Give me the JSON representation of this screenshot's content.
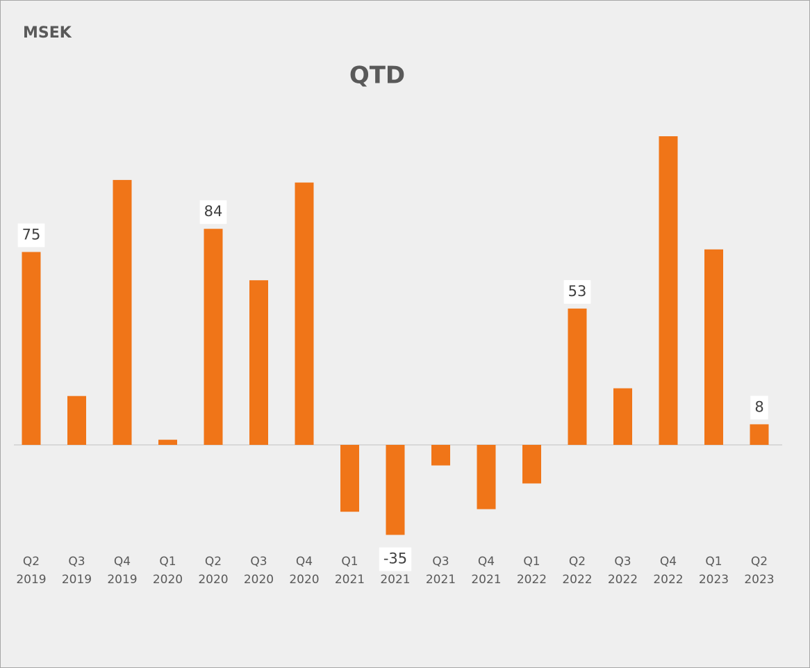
{
  "chart_data": {
    "type": "bar",
    "unit_label": "MSEK",
    "title": "QTD",
    "categories": [
      [
        "Q2",
        "2019"
      ],
      [
        "Q3",
        "2019"
      ],
      [
        "Q4",
        "2019"
      ],
      [
        "Q1",
        "2020"
      ],
      [
        "Q2",
        "2020"
      ],
      [
        "Q3",
        "2020"
      ],
      [
        "Q4",
        "2020"
      ],
      [
        "Q1",
        "2021"
      ],
      [
        "Q2",
        "2021"
      ],
      [
        "Q3",
        "2021"
      ],
      [
        "Q4",
        "2021"
      ],
      [
        "Q1",
        "2022"
      ],
      [
        "Q2",
        "2022"
      ],
      [
        "Q3",
        "2022"
      ],
      [
        "Q4",
        "2022"
      ],
      [
        "Q1",
        "2023"
      ],
      [
        "Q2",
        "2023"
      ]
    ],
    "values": [
      75,
      19,
      103,
      2,
      84,
      64,
      102,
      -26,
      -35,
      -8,
      -25,
      -15,
      53,
      22,
      120,
      76,
      8
    ],
    "value_labels": [
      "75",
      null,
      null,
      null,
      "84",
      null,
      null,
      null,
      "-35",
      null,
      null,
      null,
      "53",
      null,
      null,
      null,
      "8"
    ],
    "color": "#f07518",
    "ylim": [
      -50,
      130
    ]
  }
}
